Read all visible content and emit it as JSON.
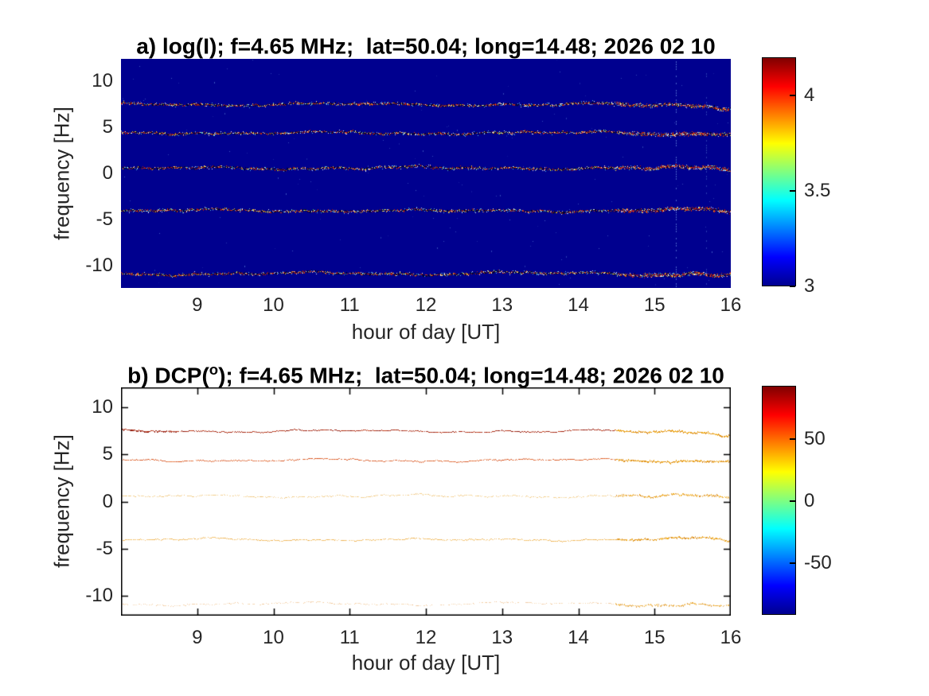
{
  "figure": {
    "background_color": "#ffffff",
    "text_color": "#262626",
    "station": {
      "radio_frequency": "f=4.65 MHz",
      "latitude": "lat=50.04",
      "longitude": "long=14.48",
      "date": "2026 02 10"
    }
  },
  "chart_data": [
    {
      "type": "heatmap",
      "panel": "a",
      "quantity": "log(I)",
      "title_parts": {
        "pre": "a) log(I); f=4.65 MHz;  lat=50.04; long=14.48; 2026 02 10",
        "sup": "",
        "post": ""
      },
      "xlabel": "hour of day [UT]",
      "ylabel": "frequency [Hz]",
      "xlim": [
        8.0,
        16.0
      ],
      "ylim": [
        -12.4,
        12.4
      ],
      "x_ticks": [
        9,
        10,
        11,
        12,
        13,
        14,
        15,
        16
      ],
      "x_tick_labels": [
        "9",
        "10",
        "11",
        "12",
        "13",
        "14",
        "15",
        "16"
      ],
      "y_ticks": [
        10,
        5,
        0,
        -5,
        -10
      ],
      "y_tick_labels": [
        "10",
        "5",
        "0",
        "-5",
        "-10"
      ],
      "grid": false,
      "colormap": "jet",
      "background_value": 3,
      "background_color": "#00008f",
      "colorbar": {
        "range": [
          3,
          4.2
        ],
        "ticks": [
          3,
          3.5,
          4
        ],
        "tick_labels": [
          "3",
          "3.5",
          "4"
        ],
        "position": "right"
      },
      "traces": [
        {
          "frequency_hz": 7.5,
          "description": "Doppler trace, speckled red/white/cyan on dark core"
        },
        {
          "frequency_hz": 4.4,
          "description": "Doppler trace, speckled red/white/cyan on dark core"
        },
        {
          "frequency_hz": 0.6,
          "description": "Doppler trace, faint speckled"
        },
        {
          "frequency_hz": -4.0,
          "description": "Doppler trace, speckled, strong wiggle after 15 UT"
        },
        {
          "frequency_hz": -10.8,
          "description": "Doppler trace, speckled"
        }
      ],
      "trace_palette": {
        "dark": [
          "#000026",
          "#0c0c5a"
        ],
        "red": [
          "#b81c10",
          "#d43a1a"
        ],
        "yellow": "#e0cc40",
        "white": "#e6eef5",
        "cyan": "#52b8e0"
      },
      "artifacts": {
        "vertical_stripe_hours": [
          15.28,
          15.68
        ],
        "stripe_color": "#8cc2ff"
      }
    },
    {
      "type": "heatmap",
      "panel": "b",
      "quantity": "DCP(deg)",
      "title_parts": {
        "pre": "b) DCP(",
        "sup": "o",
        "post": "); f=4.65 MHz;  lat=50.04; long=14.48; 2026 02 10"
      },
      "xlabel": "hour of day [UT]",
      "ylabel": "frequency [Hz]",
      "xlim": [
        8.0,
        16.0
      ],
      "ylim": [
        -12.1,
        12.1
      ],
      "x_ticks": [
        9,
        10,
        11,
        12,
        13,
        14,
        15,
        16
      ],
      "x_tick_labels": [
        "9",
        "10",
        "11",
        "12",
        "13",
        "14",
        "15",
        "16"
      ],
      "y_ticks": [
        10,
        5,
        0,
        -5,
        -10
      ],
      "y_tick_labels": [
        "10",
        "5",
        "0",
        "-5",
        "-10"
      ],
      "grid": false,
      "colormap": "jet",
      "background_color": "#ffffff",
      "colorbar": {
        "range": [
          -91.5,
          92.5
        ],
        "ticks": [
          -50,
          0,
          50
        ],
        "tick_labels": [
          "-50",
          "0",
          "50"
        ],
        "position": "right"
      },
      "traces": [
        {
          "frequency_hz": 7.5,
          "colors": [
            "#8c1408",
            "#a82410",
            "#c23a14"
          ],
          "alpha": 0.95,
          "skip": 0.05
        },
        {
          "frequency_hz": 4.4,
          "colors": [
            "#d24a1a",
            "#dd5a20",
            "#e4682a"
          ],
          "alpha": 0.85,
          "skip": 0.08
        },
        {
          "frequency_hz": 0.6,
          "colors": [
            "#f2c468",
            "#eeb850",
            "#e8aa42"
          ],
          "alpha": 0.6,
          "skip": 0.3
        },
        {
          "frequency_hz": -4.0,
          "colors": [
            "#efab38",
            "#e9a02c",
            "#f3bc58"
          ],
          "alpha": 0.75,
          "skip": 0.1
        },
        {
          "frequency_hz": -10.8,
          "colors": [
            "#eeb066",
            "#f3c07c",
            "#e59a4e"
          ],
          "alpha": 0.5,
          "skip": 0.45
        }
      ],
      "right_zone_colors": [
        "#e89c14",
        "#f2ae1c",
        "#db8d22"
      ]
    }
  ],
  "jet_stops": [
    [
      0,
      "#000090"
    ],
    [
      0.125,
      "#0000ff"
    ],
    [
      0.375,
      "#00ffff"
    ],
    [
      0.625,
      "#ffff00"
    ],
    [
      0.875,
      "#ff0000"
    ],
    [
      1,
      "#800000"
    ]
  ]
}
